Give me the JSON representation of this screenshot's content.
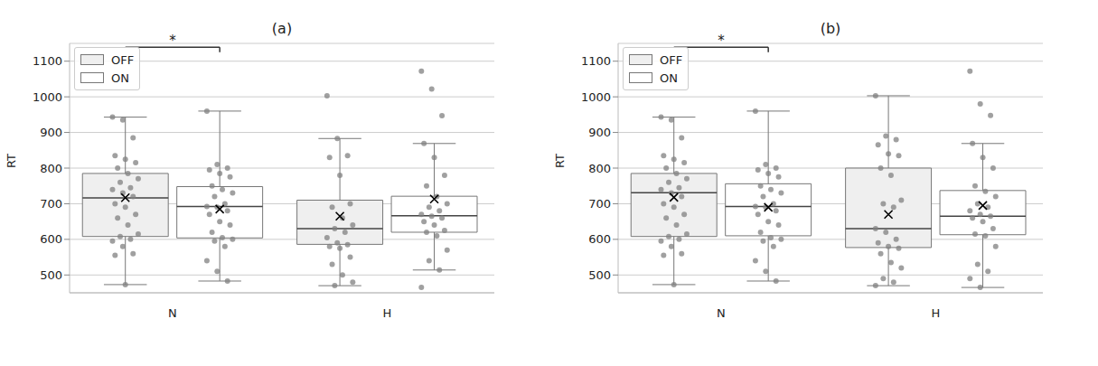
{
  "chart_data": [
    {
      "type": "box",
      "title": "(a)",
      "ylabel": "RT",
      "categories": [
        "N",
        "H"
      ],
      "ylim": [
        450,
        1150
      ],
      "yticks": [
        500,
        600,
        700,
        800,
        900,
        1000,
        1100
      ],
      "grid": true,
      "legend": "upper left",
      "significance": {
        "category": "N",
        "between": [
          "OFF",
          "ON"
        ],
        "text": "*"
      },
      "series": [
        {
          "name": "OFF",
          "color": "#efefef",
          "values": [
            {
              "whisker_low": 473,
              "q1": 608,
              "median": 716,
              "q3": 785,
              "whisker_high": 943,
              "mean": 717,
              "points": [
                943,
                935,
                885,
                835,
                825,
                815,
                800,
                785,
                770,
                760,
                745,
                740,
                730,
                720,
                700,
                690,
                670,
                660,
                640,
                615,
                608,
                600,
                595,
                580,
                560,
                555,
                473
              ]
            },
            {
              "whisker_low": 470,
              "q1": 586,
              "median": 630,
              "q3": 710,
              "whisker_high": 883,
              "mean": 665,
              "points": [
                1003,
                883,
                835,
                830,
                780,
                700,
                690,
                660,
                640,
                630,
                620,
                605,
                590,
                585,
                580,
                575,
                550,
                530,
                500,
                480,
                470
              ]
            }
          ]
        },
        {
          "name": "ON",
          "color": "#ffffff",
          "values": [
            {
              "whisker_low": 483,
              "q1": 604,
              "median": 692,
              "q3": 748,
              "whisker_high": 960,
              "mean": 685,
              "points": [
                960,
                810,
                800,
                795,
                785,
                775,
                750,
                740,
                730,
                720,
                700,
                692,
                690,
                680,
                670,
                650,
                640,
                620,
                605,
                600,
                595,
                580,
                540,
                510,
                483
              ]
            },
            {
              "whisker_low": 514,
              "q1": 620,
              "median": 666,
              "q3": 721,
              "whisker_high": 869,
              "mean": 713,
              "points": [
                1072,
                1022,
                947,
                869,
                830,
                780,
                750,
                720,
                700,
                690,
                680,
                670,
                665,
                660,
                650,
                640,
                625,
                620,
                610,
                570,
                540,
                514,
                465
              ]
            }
          ]
        }
      ]
    },
    {
      "type": "box",
      "title": "(b)",
      "ylabel": "RT",
      "categories": [
        "N",
        "H"
      ],
      "ylim": [
        450,
        1150
      ],
      "yticks": [
        500,
        600,
        700,
        800,
        900,
        1000,
        1100
      ],
      "grid": true,
      "legend": "upper left",
      "significance": {
        "category": "N",
        "between": [
          "OFF",
          "ON"
        ],
        "text": "*"
      },
      "series": [
        {
          "name": "OFF",
          "color": "#efefef",
          "values": [
            {
              "whisker_low": 473,
              "q1": 608,
              "median": 731,
              "q3": 785,
              "whisker_high": 943,
              "mean": 718,
              "points": [
                943,
                935,
                885,
                835,
                825,
                815,
                800,
                785,
                770,
                760,
                745,
                740,
                730,
                720,
                700,
                690,
                670,
                660,
                640,
                615,
                608,
                600,
                595,
                580,
                560,
                555,
                473
              ]
            },
            {
              "whisker_low": 470,
              "q1": 577,
              "median": 630,
              "q3": 800,
              "whisker_high": 1003,
              "mean": 670,
              "points": [
                1003,
                890,
                880,
                865,
                840,
                835,
                800,
                780,
                710,
                700,
                690,
                630,
                620,
                600,
                590,
                580,
                575,
                560,
                535,
                520,
                490,
                480,
                470
              ]
            }
          ]
        },
        {
          "name": "ON",
          "color": "#ffffff",
          "values": [
            {
              "whisker_low": 483,
              "q1": 610,
              "median": 692,
              "q3": 756,
              "whisker_high": 960,
              "mean": 690,
              "points": [
                960,
                810,
                800,
                795,
                785,
                775,
                750,
                740,
                730,
                720,
                700,
                692,
                690,
                680,
                670,
                650,
                640,
                620,
                605,
                600,
                595,
                580,
                540,
                510,
                483
              ]
            },
            {
              "whisker_low": 465,
              "q1": 613,
              "median": 665,
              "q3": 737,
              "whisker_high": 869,
              "mean": 695,
              "points": [
                1072,
                980,
                948,
                869,
                830,
                800,
                750,
                735,
                720,
                700,
                690,
                680,
                670,
                665,
                660,
                650,
                630,
                615,
                610,
                580,
                530,
                510,
                490,
                465
              ]
            }
          ]
        }
      ]
    }
  ]
}
